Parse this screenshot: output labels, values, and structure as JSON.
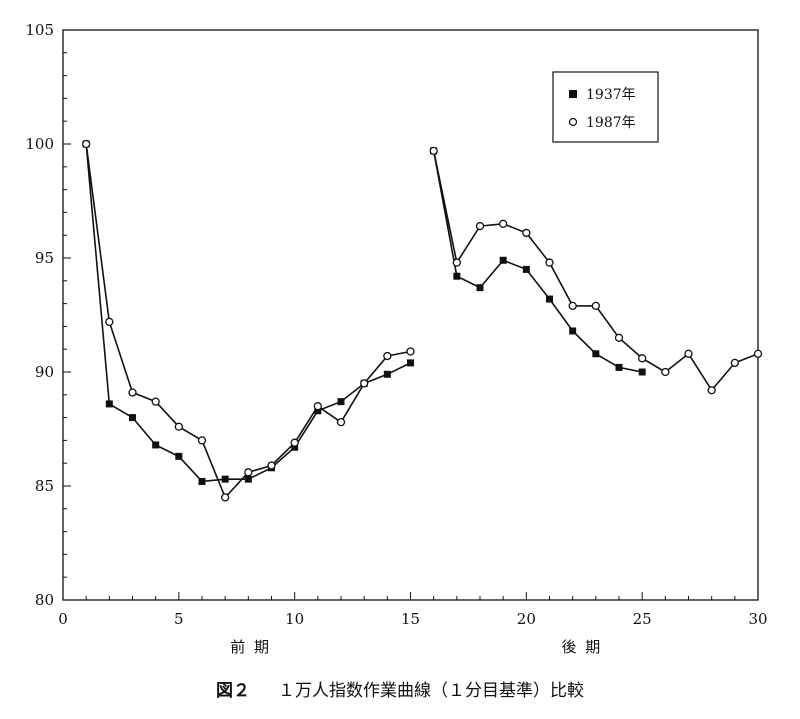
{
  "chart_data": {
    "type": "line",
    "xlim": [
      0,
      30
    ],
    "ylim": [
      80,
      105
    ],
    "x_ticks": [
      0,
      5,
      10,
      15,
      20,
      25,
      30
    ],
    "y_ticks": [
      80,
      85,
      90,
      95,
      100,
      105
    ],
    "x_tick_labels": [
      "0",
      "5",
      "10",
      "15",
      "20",
      "25",
      "30"
    ],
    "y_tick_labels": [
      "80",
      "85",
      "90",
      "95",
      "100",
      "105"
    ],
    "period_labels": [
      {
        "text": "前 期",
        "x": 8.1
      },
      {
        "text": "後 期",
        "x": 22.4
      }
    ],
    "legend_position": "top-right",
    "legend": [
      {
        "label": "1937年",
        "marker": "filled-square"
      },
      {
        "label": "1987年",
        "marker": "open-circle"
      }
    ],
    "series": [
      {
        "name": "1937年",
        "marker": "filled-square",
        "segments": [
          {
            "x": [
              1,
              2,
              3,
              4,
              5,
              6,
              7,
              8,
              9,
              10,
              11,
              12,
              13,
              14,
              15
            ],
            "y": [
              100.0,
              88.6,
              88.0,
              86.8,
              86.3,
              85.2,
              85.3,
              85.3,
              85.8,
              86.7,
              88.3,
              88.7,
              89.5,
              89.9,
              90.4
            ]
          },
          {
            "x": [
              16,
              17,
              18,
              19,
              20,
              21,
              22,
              23,
              24,
              25
            ],
            "y": [
              99.7,
              94.2,
              93.7,
              94.9,
              94.5,
              93.2,
              91.8,
              90.8,
              90.2,
              90.0
            ]
          }
        ]
      },
      {
        "name": "1987年",
        "marker": "open-circle",
        "segments": [
          {
            "x": [
              1,
              2,
              3,
              4,
              5,
              6,
              7,
              8,
              9,
              10,
              11,
              12,
              13,
              14,
              15
            ],
            "y": [
              100.0,
              92.2,
              89.1,
              88.7,
              87.6,
              87.0,
              84.5,
              85.6,
              85.9,
              86.9,
              88.5,
              87.8,
              89.5,
              90.7,
              90.9
            ]
          },
          {
            "x": [
              16,
              17,
              18,
              19,
              20,
              21,
              22,
              23,
              24,
              25,
              26,
              27,
              28,
              29,
              30
            ],
            "y": [
              99.7,
              94.8,
              96.4,
              96.5,
              96.1,
              94.8,
              92.9,
              92.9,
              91.5,
              90.6,
              90.0,
              90.8,
              89.2,
              90.4,
              90.8
            ]
          }
        ]
      }
    ]
  },
  "caption": {
    "figure_number": "図２",
    "text": "１万人指数作業曲線（１分目基準）比較"
  }
}
